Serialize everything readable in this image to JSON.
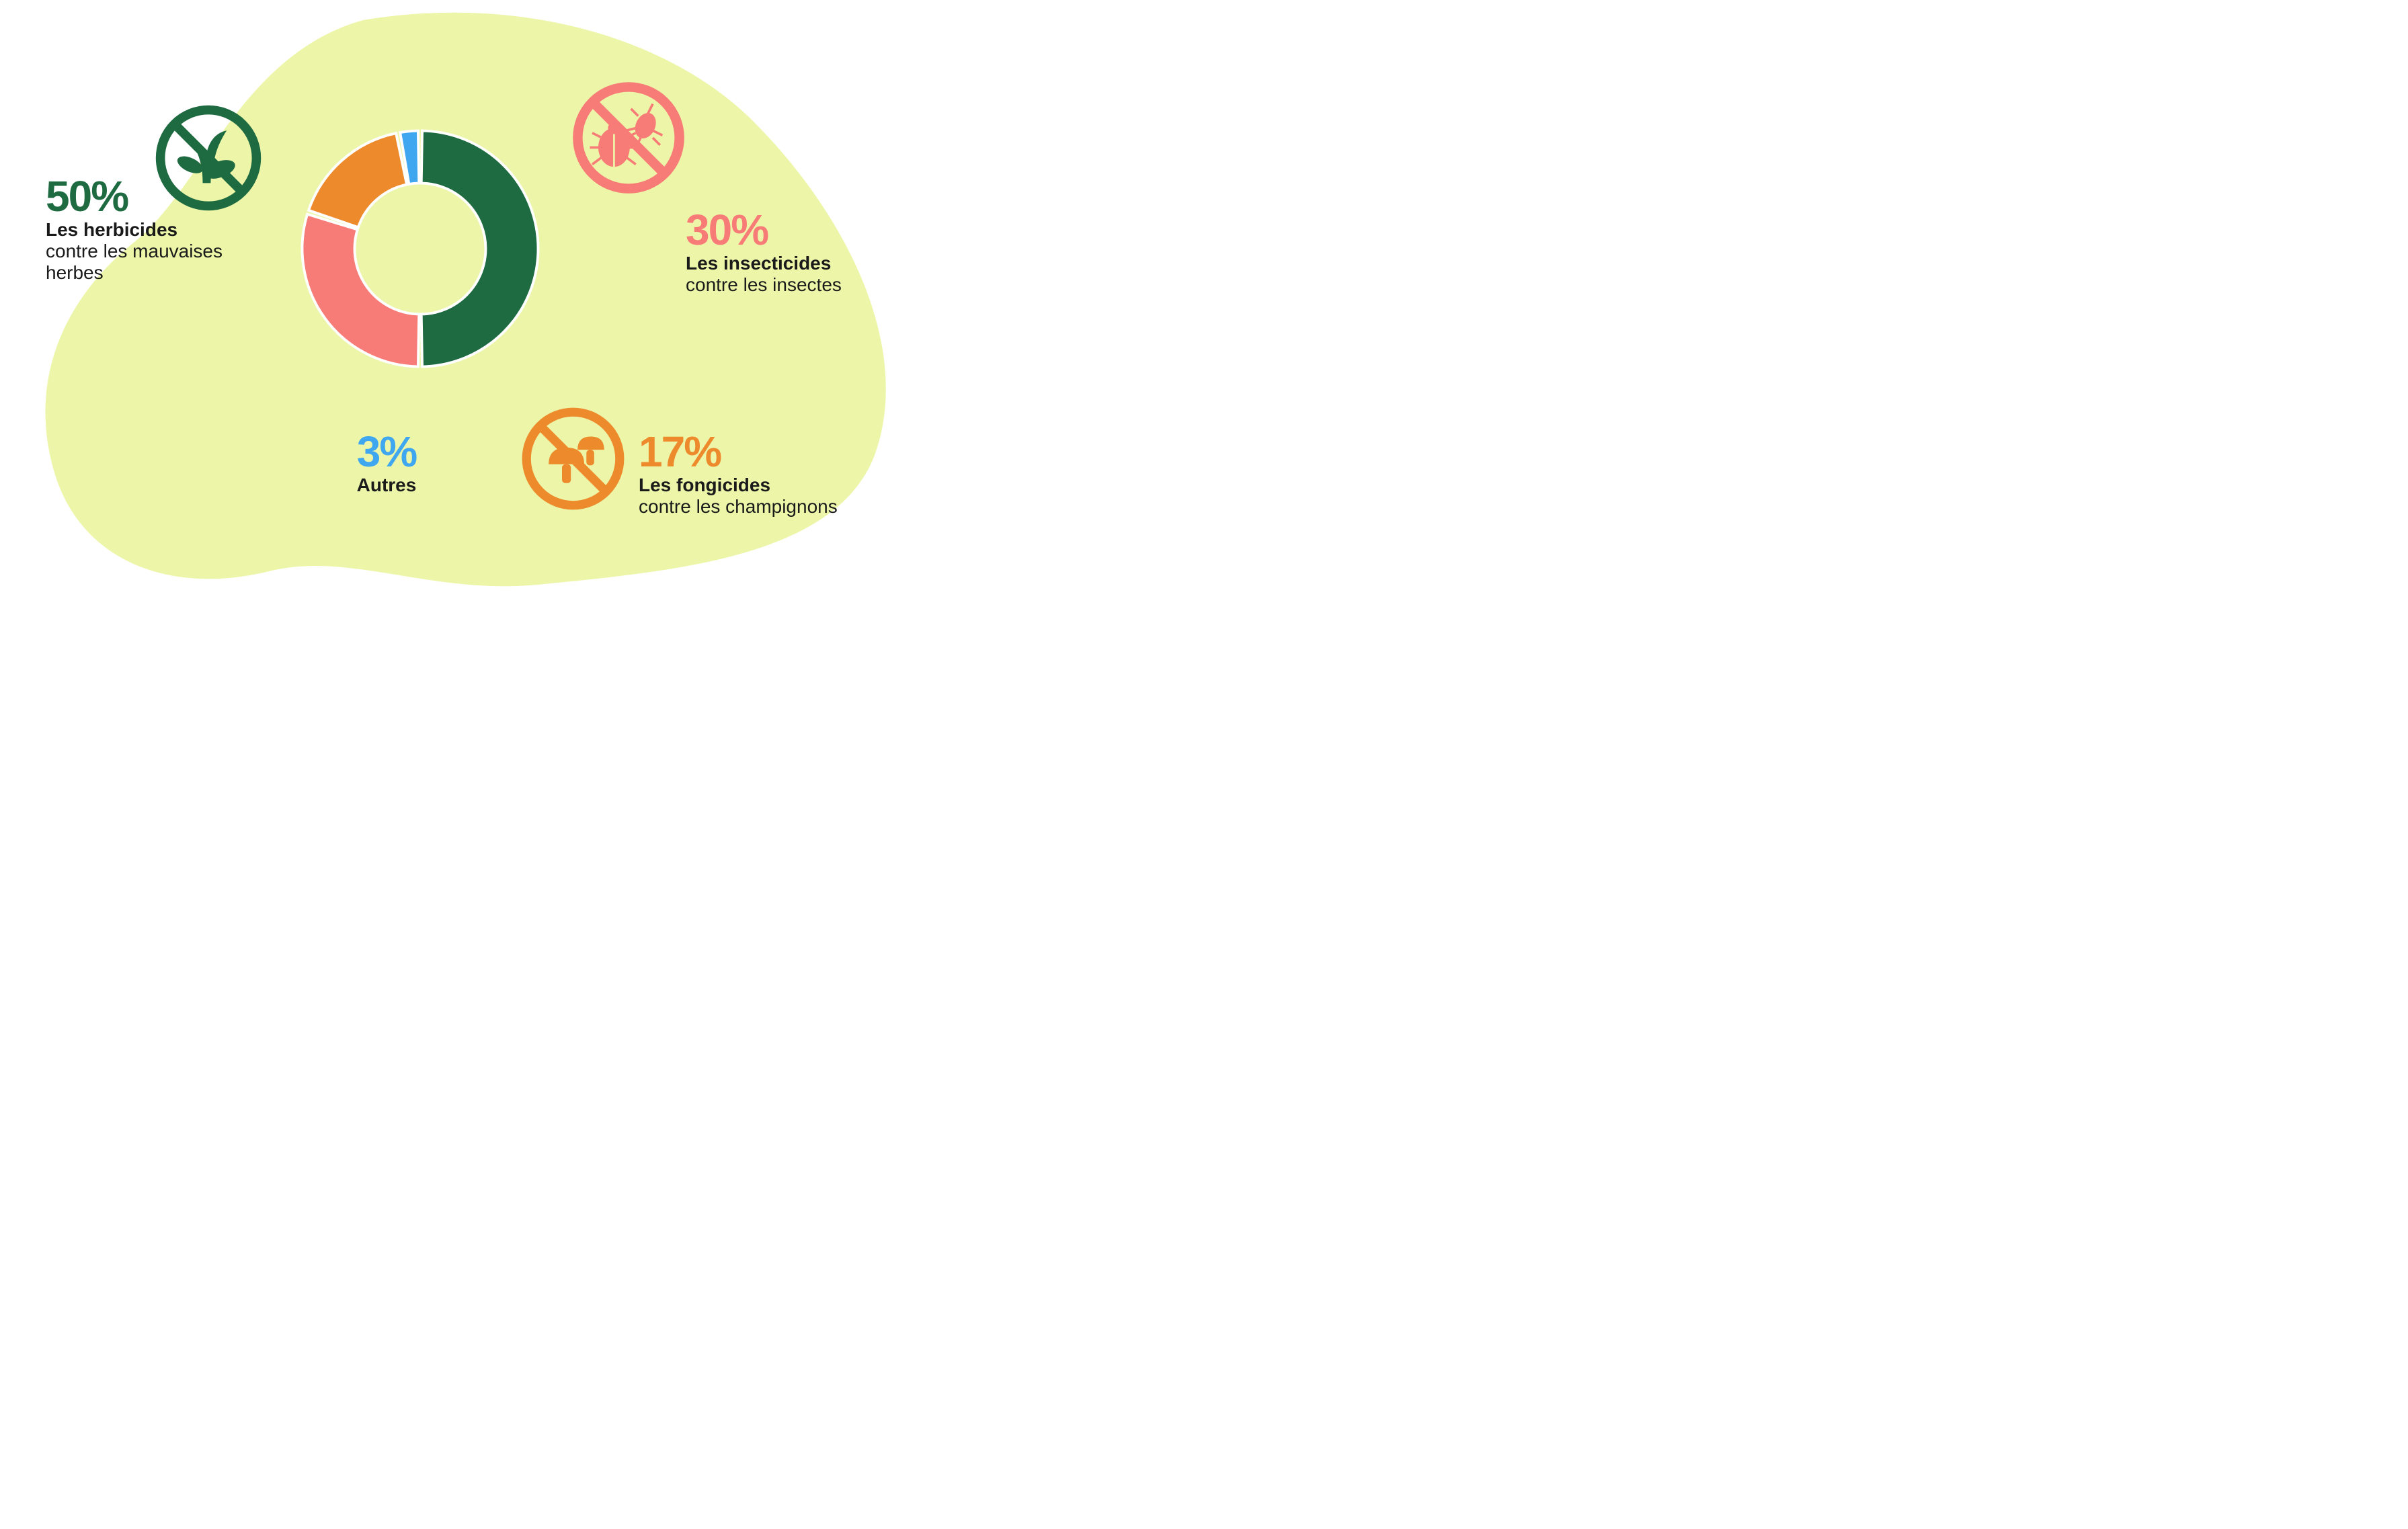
{
  "chart": {
    "type": "donut",
    "background_blob_color": "#edf6a8",
    "donut_outer_radius": 180,
    "donut_inner_radius": 100,
    "gap_degrees": 2,
    "segment_stroke": "#ffffff",
    "segment_stroke_width": 4,
    "segments": [
      {
        "key": "herbicides",
        "value": 50,
        "color": "#1e6a41",
        "start_angle": 0
      },
      {
        "key": "insecticides",
        "value": 30,
        "color": "#f77b76",
        "start_angle": 180
      },
      {
        "key": "fongicides",
        "value": 17,
        "color": "#ec8a2c",
        "start_angle": 288
      },
      {
        "key": "autres",
        "value": 3,
        "color": "#3fa7f0",
        "start_angle": 349.2
      }
    ]
  },
  "labels": {
    "herbicides": {
      "pct": "50%",
      "pct_color": "#1e6a41",
      "title": "Les herbicides",
      "desc": "contre les mauvaises herbes",
      "icon_color": "#1e6a41"
    },
    "insecticides": {
      "pct": "30%",
      "pct_color": "#f77b76",
      "title": "Les insecticides",
      "desc": "contre les insectes",
      "icon_color": "#f77b76"
    },
    "fongicides": {
      "pct": "17%",
      "pct_color": "#ec8a2c",
      "title": "Les fongicides",
      "desc": "contre les champignons",
      "icon_color": "#ec8a2c"
    },
    "autres": {
      "pct": "3%",
      "pct_color": "#3fa7f0",
      "title": "Autres"
    }
  },
  "typography": {
    "pct_fontsize": 64,
    "title_fontsize": 28,
    "desc_fontsize": 28,
    "text_color": "#1a1a1a"
  }
}
